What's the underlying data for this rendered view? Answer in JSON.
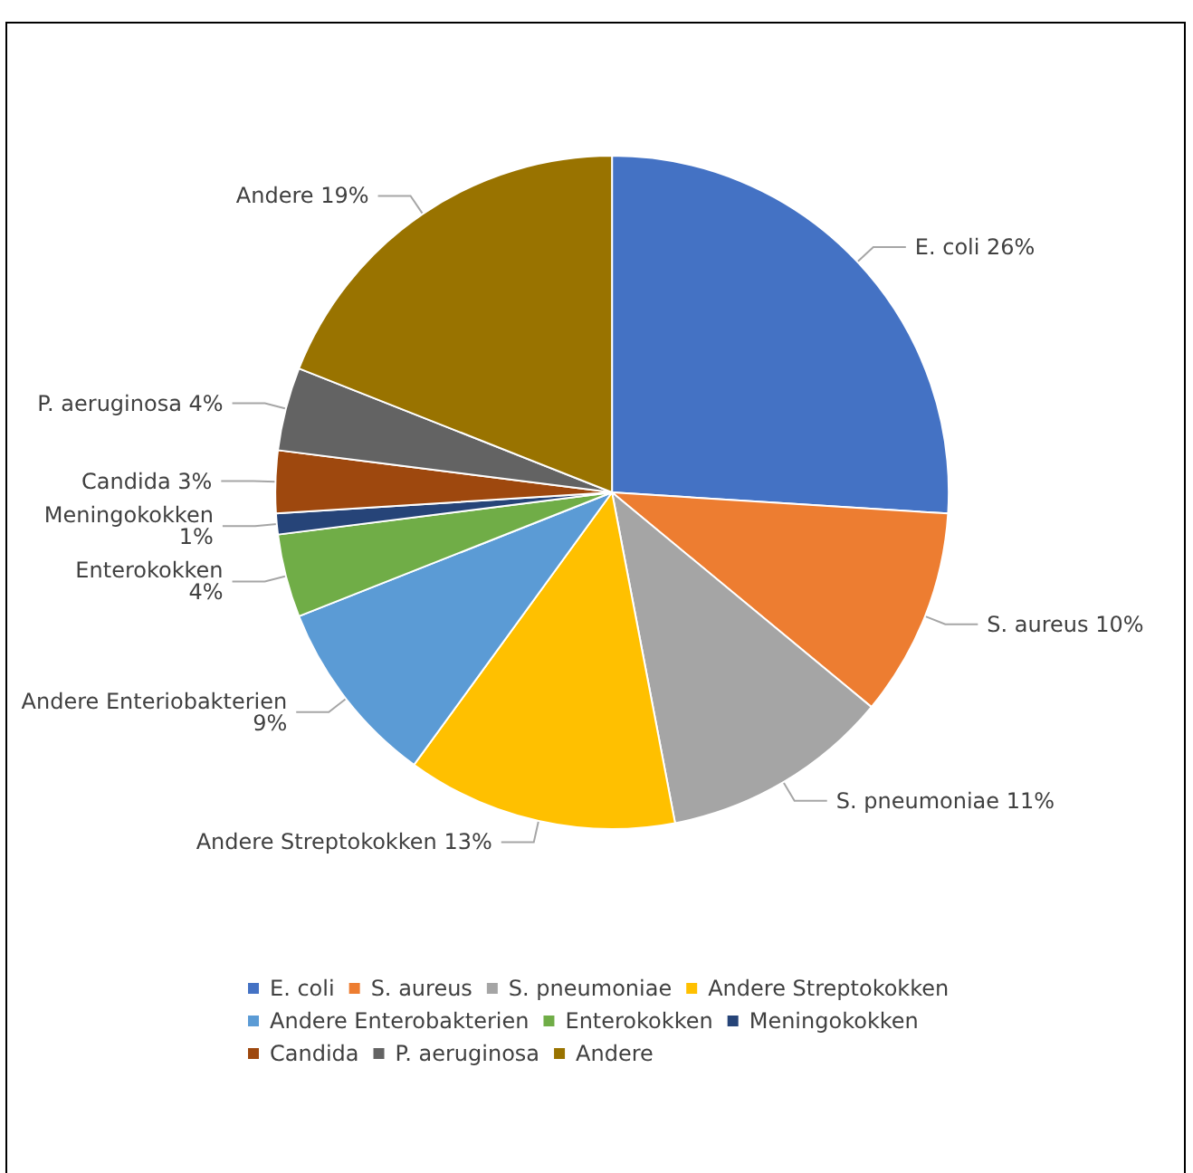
{
  "chart_data": {
    "type": "pie",
    "categories": [
      "E. coli",
      "S. aureus",
      "S. pneumoniae",
      "Andere Streptokokken",
      "Andere Enterobakterien",
      "Enterokokken",
      "Meningokokken",
      "Candida",
      "P. aeruginosa",
      "Andere"
    ],
    "values": [
      26,
      10,
      11,
      13,
      9,
      4,
      1,
      3,
      4,
      19
    ],
    "colors": [
      "#4472c4",
      "#ed7d31",
      "#a5a5a5",
      "#ffc000",
      "#5b9bd5",
      "#70ad47",
      "#264478",
      "#9e480e",
      "#636363",
      "#997300"
    ],
    "value_labels": [
      "E. coli 26%",
      "S. aureus 10%",
      "S. pneumoniae 11%",
      "Andere Streptokokken 13%",
      "Andere Enteriobakterien\n9%",
      "Enterokokken\n4%",
      "Meningokokken\n1%",
      "Candida 3%",
      "P. aeruginosa 4%",
      "Andere 19%"
    ],
    "legend": "bottom"
  }
}
